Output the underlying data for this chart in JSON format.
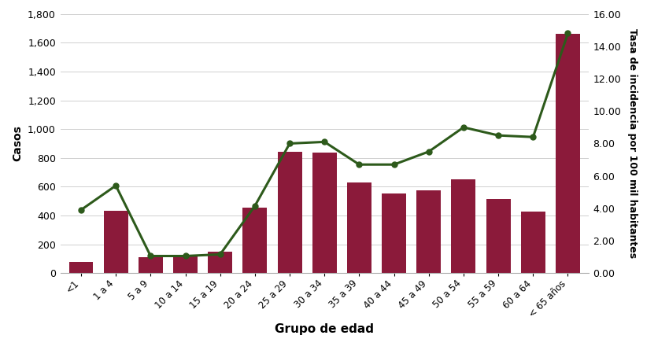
{
  "categories": [
    "<1",
    "1 a 4",
    "5 a 9",
    "10 a 14",
    "15 a 19",
    "20 a 24",
    "25 a 29",
    "30 a 34",
    "35 a 39",
    "40 a 44",
    "45 a 49",
    "50 a 54",
    "55 a 59",
    "60 a 64",
    "< 65 años"
  ],
  "bar_values": [
    75,
    430,
    110,
    115,
    150,
    455,
    845,
    835,
    630,
    550,
    575,
    650,
    515,
    425,
    1660
  ],
  "line_values": [
    3.9,
    5.4,
    1.05,
    1.05,
    1.15,
    4.15,
    8.0,
    8.1,
    6.7,
    6.7,
    7.5,
    9.0,
    8.5,
    8.4,
    14.8
  ],
  "bar_color": "#8B1A3A",
  "line_color": "#2D5A1B",
  "ylabel_left": "Casos",
  "ylabel_right": "Tasa de incidencia por 100 mil habitantes",
  "xlabel": "Grupo de edad",
  "ylim_left": [
    0,
    1800
  ],
  "ylim_right": [
    0,
    16.0
  ],
  "yticks_left": [
    0,
    200,
    400,
    600,
    800,
    1000,
    1200,
    1400,
    1600,
    1800
  ],
  "yticks_right": [
    0.0,
    2.0,
    4.0,
    6.0,
    8.0,
    10.0,
    12.0,
    14.0,
    16.0
  ],
  "background_color": "#ffffff",
  "grid_color": "#d0d0d0"
}
